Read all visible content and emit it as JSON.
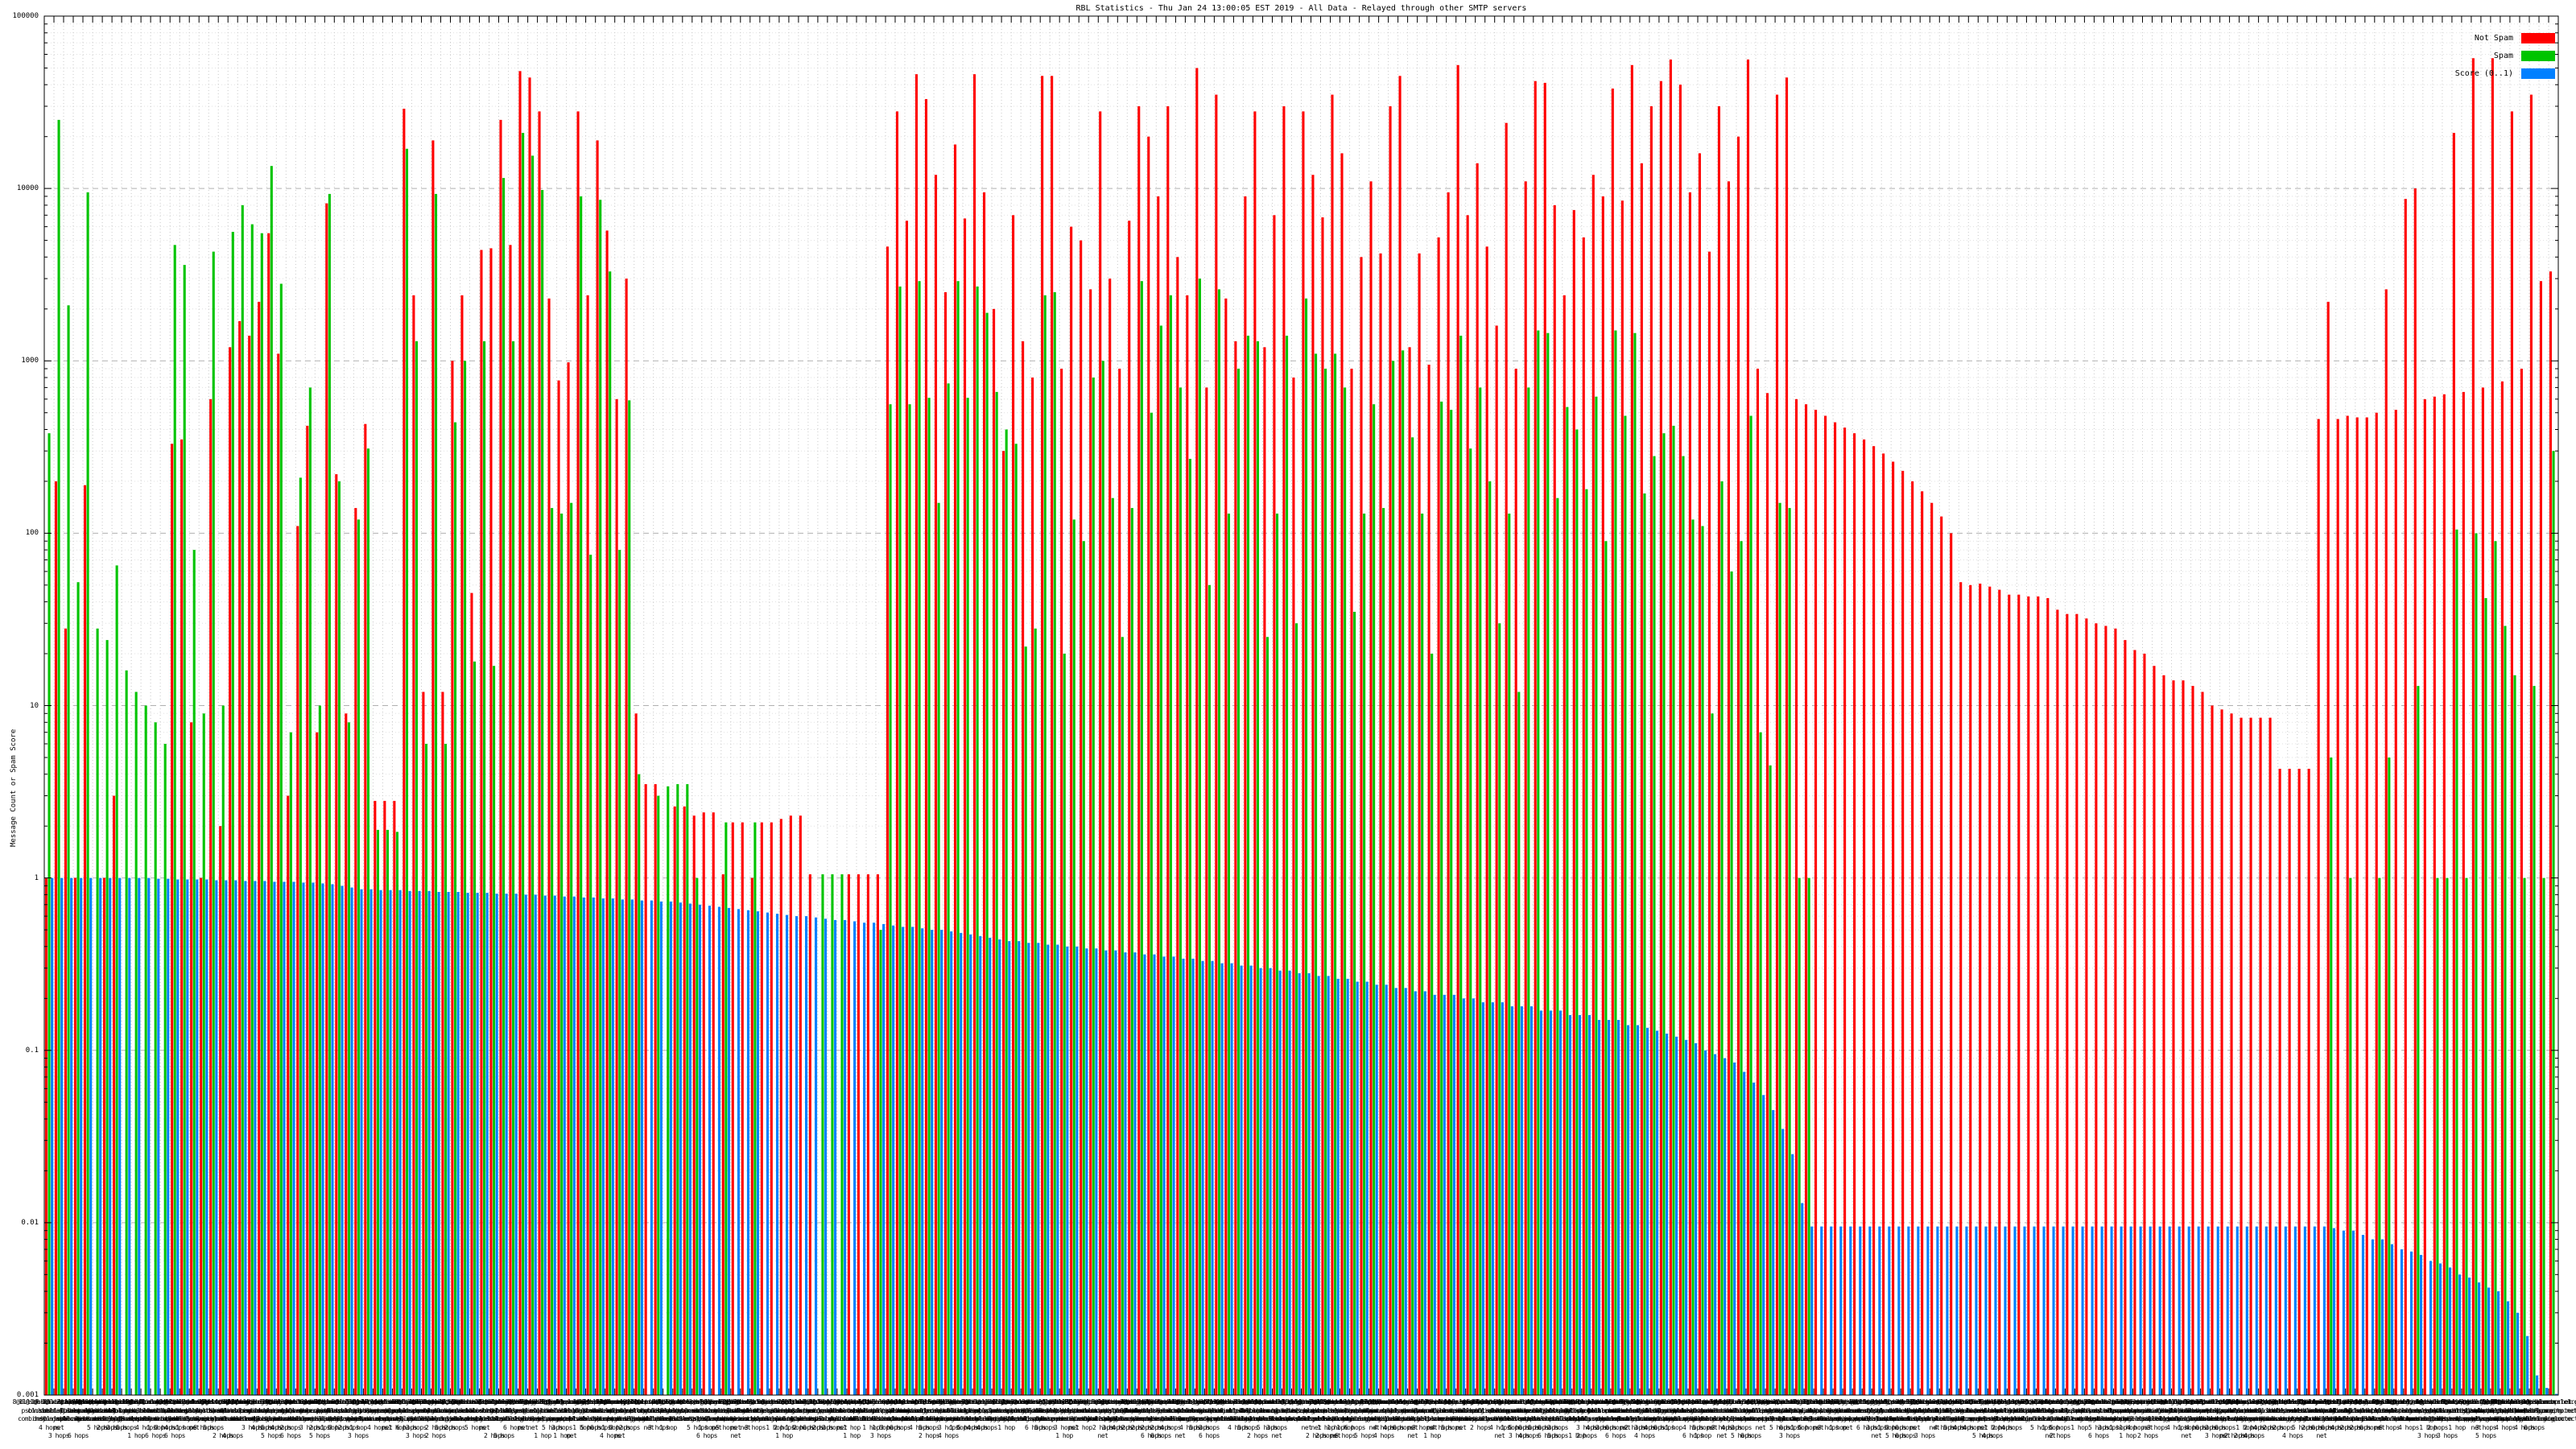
{
  "chart_data": {
    "type": "bar",
    "title": "RBL Statistics - Thu Jan 24 13:00:05 EST 2019 - All Data - Relayed through other SMTP servers",
    "ylabel": "Message Count or Spam Score",
    "y_log": true,
    "y_range": [
      0.001,
      100000
    ],
    "y_ticks": [
      "100000",
      "10000",
      "1000",
      "100",
      "10",
      "1",
      "0.1",
      "0.01",
      "0.001"
    ],
    "grid": {
      "horizontal_major": "dashed",
      "horizontal_minor": "dotted",
      "vertical_per_cluster": "dotted"
    },
    "legend": {
      "position": "top-right",
      "entries": [
        {
          "label": "Not Spam",
          "color": "#ff0000"
        },
        {
          "label": "Spam",
          "color": "#00c400"
        },
        {
          "label": "Score (0..1)",
          "color": "#0080ff"
        }
      ]
    },
    "x_cluster_count": 260,
    "x_axis": {
      "legible_fragments": [
        "1 hop",
        "2 hops",
        "3 hops",
        "4 hops",
        "5 hops",
        "net",
        "zen",
        "dnsbl",
        "sp",
        "org",
        "list",
        "sbl",
        "1 Ho",
        "9@",
        "2@",
        "3@",
        "4@"
      ],
      "host_pool": [
        "zen.spamhaus.org",
        "sbl-xbl.spamhaus.org",
        "bl.spamcop.net",
        "dnsbl.sorbs.net",
        "dul.dnsbl.sorbs.net",
        "list.dsbl.org",
        "b.barracudacentral.org",
        "dnsbl-1.uceprotect.net",
        "psbl.surriel.com",
        "ix.dnsbl.manitu.net",
        "cbl.abuseat.org",
        "pbl.spamhaus.org",
        "dnsbl.dronebl.org",
        "truncate.gbudb.net",
        "dyna.spamrats.com",
        "combined.njabl.org"
      ],
      "hops_pool": [
        "1 hop",
        "2 hops",
        "3 hops",
        "4 hops",
        "5 hops",
        "6 hops",
        "net"
      ]
    },
    "series": [
      {
        "name": "Not Spam",
        "color": "#ff0000",
        "values": [
          1,
          200,
          28,
          1,
          190,
          0,
          1,
          3,
          0,
          0,
          0,
          0,
          0,
          330,
          350,
          8,
          1,
          600,
          2,
          1200,
          1700,
          1400,
          2200,
          5500,
          1100,
          3,
          110,
          420,
          7,
          8200,
          220,
          9,
          140,
          430,
          2.8,
          2.8,
          2.8,
          29000,
          2400,
          12,
          19000,
          12,
          1000,
          2400,
          45,
          4400,
          4500,
          25000,
          4700,
          48000,
          44000,
          28000,
          2300,
          770,
          980,
          28000,
          2400,
          19000,
          5700,
          600,
          3000,
          9,
          3.5,
          3.5,
          0,
          2.6,
          2.6,
          2.3,
          2.4,
          2.4,
          1.05,
          2.1,
          2.1,
          1,
          2.1,
          2.1,
          2.2,
          2.3,
          2.3,
          1.05,
          0,
          0,
          0,
          1.05,
          1.05,
          1.05,
          1.05,
          4600,
          28000,
          6500,
          46000,
          33000,
          12000,
          2500,
          18000,
          6700,
          46000,
          9500,
          2000,
          300,
          7000,
          1300,
          800,
          45000,
          45000,
          900,
          6000,
          5000,
          2600,
          28000,
          3000,
          900,
          6500,
          30000,
          20000,
          9000,
          30000,
          4000,
          2400,
          50000,
          700,
          35000,
          2300,
          1300,
          9000,
          28000,
          1200,
          7000,
          30000,
          800,
          28000,
          12000,
          6800,
          35000,
          16000,
          900,
          4000,
          11000,
          4200,
          30000,
          45000,
          1200,
          4200,
          950,
          5200,
          9500,
          52000,
          7000,
          14000,
          4600,
          1600,
          24000,
          900,
          11000,
          42000,
          41000,
          8000,
          2400,
          7500,
          5200,
          12000,
          9000,
          38000,
          8500,
          52000,
          14000,
          30000,
          42000,
          56000,
          40000,
          9500,
          16000,
          4300,
          30000,
          11000,
          20000,
          56000,
          900,
          650,
          35000,
          44000,
          600,
          560,
          520,
          480,
          440,
          410,
          380,
          350,
          320,
          290,
          260,
          230,
          200,
          175,
          150,
          125,
          100,
          52,
          50,
          51,
          49,
          47,
          44,
          44,
          43,
          43,
          42,
          36,
          34,
          34,
          32,
          30,
          29,
          28,
          24,
          21,
          20,
          17,
          15,
          14,
          14,
          13,
          12,
          10,
          9.5,
          9,
          8.5,
          8.5,
          8.5,
          8.5,
          4.3,
          4.3,
          4.3,
          4.3,
          460,
          2200,
          460,
          480,
          470,
          470,
          500,
          2600,
          520,
          8700,
          10000,
          600,
          620,
          640,
          21000,
          660,
          57000,
          700,
          57000,
          760,
          28000,
          900,
          35000,
          2900,
          3300
        ]
      },
      {
        "name": "Spam",
        "color": "#00c400",
        "values": [
          380,
          25000,
          2100,
          52,
          9500,
          28,
          24,
          65,
          16,
          12,
          10,
          8,
          6,
          4700,
          3600,
          80,
          9,
          4300,
          10,
          5600,
          8000,
          6200,
          5500,
          13500,
          2800,
          7,
          210,
          700,
          10,
          9300,
          200,
          8,
          120,
          310,
          1.9,
          1.9,
          1.85,
          17000,
          1300,
          6,
          9300,
          6,
          440,
          1000,
          18,
          1300,
          17,
          11500,
          1300,
          21000,
          15500,
          9800,
          140,
          130,
          150,
          9000,
          75,
          8600,
          3300,
          80,
          590,
          4,
          0,
          3,
          3.4,
          3.5,
          3.5,
          1,
          0,
          0,
          2.1,
          0,
          0,
          2.1,
          0,
          0,
          0,
          0,
          0,
          0,
          1.05,
          1.05,
          1.05,
          0,
          0,
          0,
          0.5,
          560,
          2700,
          560,
          2900,
          610,
          150,
          740,
          2900,
          610,
          2700,
          1900,
          660,
          400,
          330,
          22,
          28,
          2400,
          2500,
          20,
          120,
          90,
          800,
          1000,
          160,
          25,
          140,
          2900,
          500,
          1600,
          2400,
          700,
          270,
          3000,
          50,
          2600,
          130,
          900,
          1400,
          1300,
          25,
          130,
          1400,
          30,
          2300,
          1100,
          900,
          1100,
          700,
          35,
          130,
          560,
          140,
          1000,
          1150,
          360,
          130,
          20,
          580,
          520,
          1400,
          310,
          700,
          200,
          30,
          130,
          12,
          700,
          1500,
          1450,
          160,
          540,
          400,
          180,
          620,
          90,
          1500,
          480,
          1450,
          170,
          280,
          380,
          420,
          280,
          120,
          110,
          9,
          200,
          60,
          90,
          480,
          7,
          4.5,
          150,
          140,
          1,
          1,
          0,
          0,
          0,
          0,
          0,
          0,
          0,
          0,
          0,
          0,
          0,
          0,
          0,
          0,
          0,
          0,
          0,
          0,
          0,
          0,
          0,
          0,
          0,
          0,
          0,
          0,
          0,
          0,
          0,
          0,
          0,
          0,
          0,
          0,
          0,
          0,
          0,
          0,
          0,
          0,
          0,
          0,
          0,
          0,
          0,
          0,
          0,
          0,
          0,
          0,
          0,
          0,
          0,
          5,
          0,
          1,
          0,
          0,
          1,
          5,
          0,
          0,
          13,
          0,
          1,
          1,
          105,
          1,
          100,
          42,
          90,
          29,
          15,
          1,
          13,
          1,
          300
        ]
      },
      {
        "name": "Score (0..1)",
        "color": "#0080ff",
        "values": [
          1,
          1,
          1,
          1,
          1,
          1,
          1,
          1,
          1,
          1,
          1,
          0.99,
          0.99,
          0.98,
          0.98,
          0.98,
          0.98,
          0.97,
          0.97,
          0.97,
          0.96,
          0.96,
          0.96,
          0.95,
          0.95,
          0.95,
          0.94,
          0.94,
          0.93,
          0.92,
          0.9,
          0.88,
          0.86,
          0.86,
          0.85,
          0.85,
          0.85,
          0.84,
          0.84,
          0.84,
          0.83,
          0.83,
          0.83,
          0.82,
          0.82,
          0.82,
          0.81,
          0.81,
          0.81,
          0.8,
          0.8,
          0.79,
          0.79,
          0.78,
          0.78,
          0.77,
          0.77,
          0.76,
          0.76,
          0.75,
          0.75,
          0.74,
          0.74,
          0.73,
          0.73,
          0.72,
          0.71,
          0.7,
          0.69,
          0.68,
          0.67,
          0.66,
          0.65,
          0.64,
          0.63,
          0.62,
          0.61,
          0.6,
          0.6,
          0.59,
          0.58,
          0.57,
          0.57,
          0.56,
          0.55,
          0.55,
          0.54,
          0.53,
          0.52,
          0.52,
          0.51,
          0.5,
          0.5,
          0.49,
          0.48,
          0.47,
          0.46,
          0.45,
          0.44,
          0.43,
          0.43,
          0.42,
          0.42,
          0.41,
          0.41,
          0.4,
          0.4,
          0.39,
          0.39,
          0.38,
          0.38,
          0.37,
          0.37,
          0.36,
          0.36,
          0.35,
          0.35,
          0.34,
          0.34,
          0.33,
          0.33,
          0.32,
          0.32,
          0.31,
          0.31,
          0.3,
          0.3,
          0.29,
          0.29,
          0.28,
          0.28,
          0.27,
          0.27,
          0.26,
          0.26,
          0.25,
          0.25,
          0.24,
          0.24,
          0.23,
          0.23,
          0.22,
          0.22,
          0.21,
          0.21,
          0.21,
          0.2,
          0.2,
          0.19,
          0.19,
          0.19,
          0.18,
          0.18,
          0.18,
          0.17,
          0.17,
          0.17,
          0.16,
          0.16,
          0.16,
          0.15,
          0.15,
          0.15,
          0.14,
          0.14,
          0.135,
          0.13,
          0.125,
          0.12,
          0.115,
          0.11,
          0.1,
          0.095,
          0.09,
          0.085,
          0.075,
          0.065,
          0.055,
          0.045,
          0.035,
          0.025,
          0.013,
          0.0095,
          0.0095,
          0.0095,
          0.0095,
          0.0095,
          0.0095,
          0.0095,
          0.0095,
          0.0095,
          0.0095,
          0.0095,
          0.0095,
          0.0095,
          0.0095,
          0.0095,
          0.0095,
          0.0095,
          0.0095,
          0.0095,
          0.0095,
          0.0095,
          0.0095,
          0.0095,
          0.0095,
          0.0095,
          0.0095,
          0.0095,
          0.0095,
          0.0095,
          0.0095,
          0.0095,
          0.0095,
          0.0095,
          0.0095,
          0.0095,
          0.0095,
          0.0095,
          0.0095,
          0.0095,
          0.0095,
          0.0095,
          0.0095,
          0.0095,
          0.0095,
          0.0095,
          0.0095,
          0.0095,
          0.0095,
          0.0095,
          0.0095,
          0.0095,
          0.0095,
          0.0095,
          0.0095,
          0.0093,
          0.009,
          0.009,
          0.0085,
          0.008,
          0.008,
          0.0075,
          0.007,
          0.0068,
          0.0065,
          0.006,
          0.0058,
          0.0055,
          0.005,
          0.0048,
          0.0045,
          0.0042,
          0.004,
          0.0035,
          0.003,
          0.0022,
          0.0013,
          0.0011,
          0.0009
        ]
      }
    ]
  }
}
